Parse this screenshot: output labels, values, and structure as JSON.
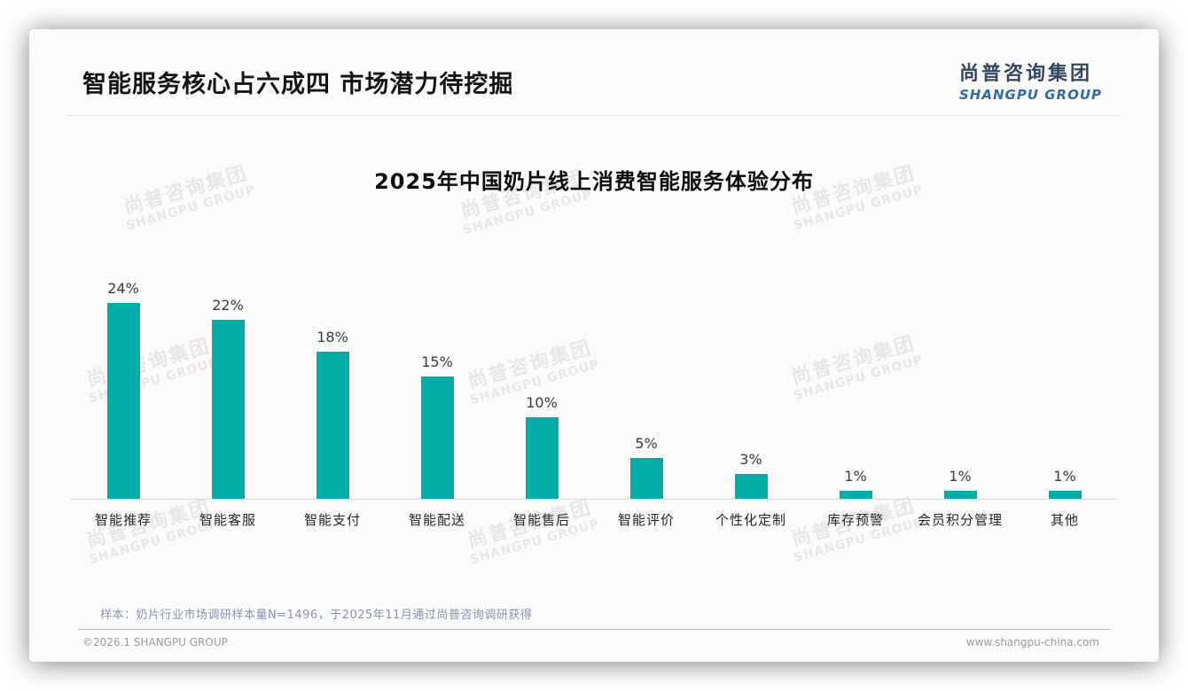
{
  "page": {
    "title": "智能服务核心占六成四 市场潜力待挖掘",
    "logo": {
      "cn": "尚普咨询集团",
      "en": "SHANGPU GROUP"
    },
    "watermark": {
      "cn": "尚普咨询集团",
      "en": "SHANGPU GROUP"
    },
    "footer": {
      "sample_note": "样本：奶片行业市场调研样本量N=1496，于2025年11月通过尚普咨询调研获得",
      "copyright": "©2026.1 SHANGPU GROUP",
      "website": "www.shangpu-china.com"
    }
  },
  "chart_data": {
    "type": "bar",
    "title": "2025年中国奶片线上消费智能服务体验分布",
    "categories": [
      "智能推荐",
      "智能客服",
      "智能支付",
      "智能配送",
      "智能售后",
      "智能评价",
      "个性化定制",
      "库存预警",
      "会员积分管理",
      "其他"
    ],
    "values": [
      24,
      22,
      18,
      15,
      10,
      5,
      3,
      1,
      1,
      1
    ],
    "value_labels": [
      "24%",
      "22%",
      "18%",
      "15%",
      "10%",
      "5%",
      "3%",
      "1%",
      "1%",
      "1%"
    ],
    "unit": "%",
    "bar_color": "#00ADA9",
    "axis_line_color": "#d9d9d9",
    "ylim": [
      0,
      26
    ],
    "grid": false,
    "legend": false
  }
}
